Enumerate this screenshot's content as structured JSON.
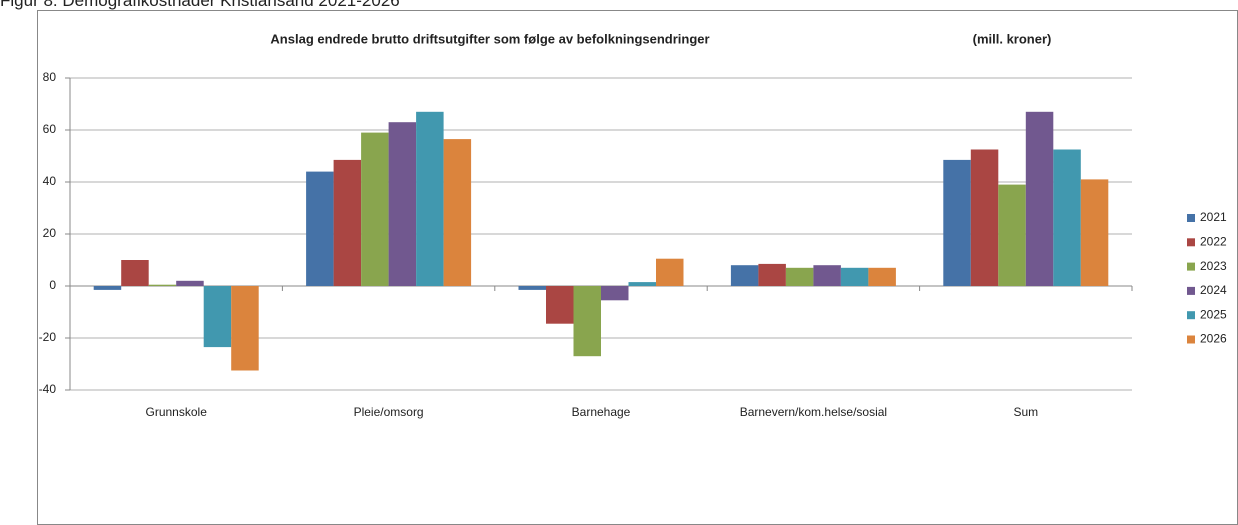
{
  "chart_data": {
    "type": "bar",
    "caption": "Figur 8. Demografikostnader Kristiansand 2021-2026",
    "title": "Anslag endrede brutto driftsutgifter som følge av befolkningsendringer",
    "subtitle": "(mill. kroner)",
    "categories": [
      "Grunnskole",
      "Pleie/omsorg",
      "Barnehage",
      "Barnevern/kom.helse/sosial",
      "Sum"
    ],
    "series": [
      {
        "name": "2021",
        "color": "#4572a7",
        "values": [
          -1.5,
          44,
          -1.5,
          8,
          48.5
        ]
      },
      {
        "name": "2022",
        "color": "#aa4643",
        "values": [
          10,
          48.5,
          -14.5,
          8.5,
          52.5
        ]
      },
      {
        "name": "2023",
        "color": "#89a54e",
        "values": [
          0.5,
          59,
          -27,
          7,
          39
        ]
      },
      {
        "name": "2024",
        "color": "#71588f",
        "values": [
          2,
          63,
          -5.5,
          8,
          67
        ]
      },
      {
        "name": "2025",
        "color": "#4198af",
        "values": [
          -23.5,
          67,
          1.5,
          7,
          52.5
        ]
      },
      {
        "name": "2026",
        "color": "#db843d",
        "values": [
          -32.5,
          56.5,
          10.5,
          7,
          41
        ]
      }
    ],
    "ylim": [
      -40,
      80
    ],
    "yticks": [
      -40,
      -20,
      0,
      20,
      40,
      60,
      80
    ],
    "grid": true,
    "legend": "right"
  }
}
